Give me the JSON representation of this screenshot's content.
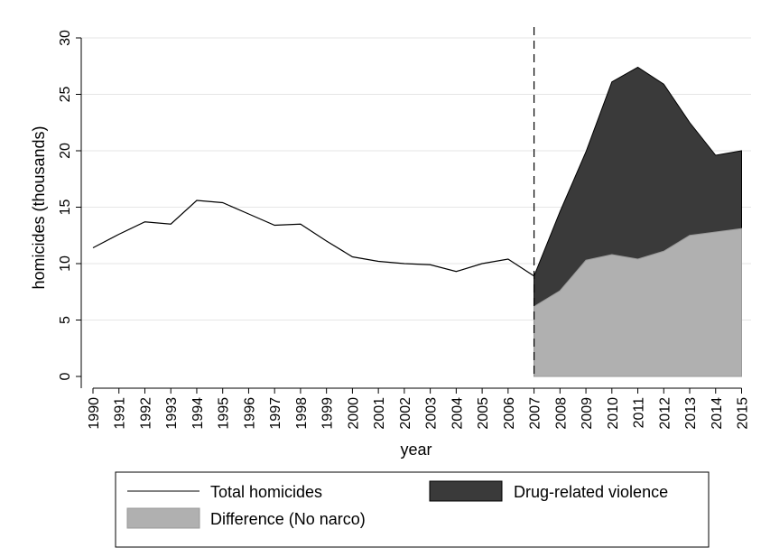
{
  "chart_data": {
    "type": "area",
    "title": "",
    "xlabel": "year",
    "ylabel": "homicides (thousands)",
    "ylim": [
      0,
      30
    ],
    "yticks": [
      0,
      5,
      10,
      15,
      20,
      25,
      30
    ],
    "x": [
      1990,
      1991,
      1992,
      1993,
      1994,
      1995,
      1996,
      1997,
      1998,
      1999,
      2000,
      2001,
      2002,
      2003,
      2004,
      2005,
      2006,
      2007,
      2008,
      2009,
      2010,
      2011,
      2012,
      2013,
      2014,
      2015
    ],
    "grid": true,
    "vline_year": 2007,
    "legend_position": "bottom",
    "series": [
      {
        "name": "Total homicides",
        "kind": "line",
        "color": "#000000",
        "x": [
          1990,
          1991,
          1992,
          1993,
          1994,
          1995,
          1996,
          1997,
          1998,
          1999,
          2000,
          2001,
          2002,
          2003,
          2004,
          2005,
          2006,
          2007
        ],
        "values": [
          11.4,
          12.6,
          13.7,
          13.5,
          15.6,
          15.4,
          14.4,
          13.4,
          13.5,
          12.0,
          10.6,
          10.2,
          10.0,
          9.9,
          9.3,
          10.0,
          10.4,
          8.9
        ]
      },
      {
        "name": "Drug-related violence",
        "kind": "area",
        "color": "#3a3a3a",
        "x": [
          2007,
          2008,
          2009,
          2010,
          2011,
          2012,
          2013,
          2014,
          2015
        ],
        "values": [
          8.9,
          14.6,
          19.9,
          26.1,
          27.4,
          25.9,
          22.5,
          19.6,
          20.0
        ]
      },
      {
        "name": "Difference (No narco)",
        "kind": "area",
        "color": "#b0b0b0",
        "x": [
          2007,
          2008,
          2009,
          2010,
          2011,
          2012,
          2013,
          2014,
          2015
        ],
        "values": [
          6.2,
          7.6,
          10.3,
          10.8,
          10.4,
          11.1,
          12.5,
          12.8,
          13.1
        ]
      }
    ]
  }
}
